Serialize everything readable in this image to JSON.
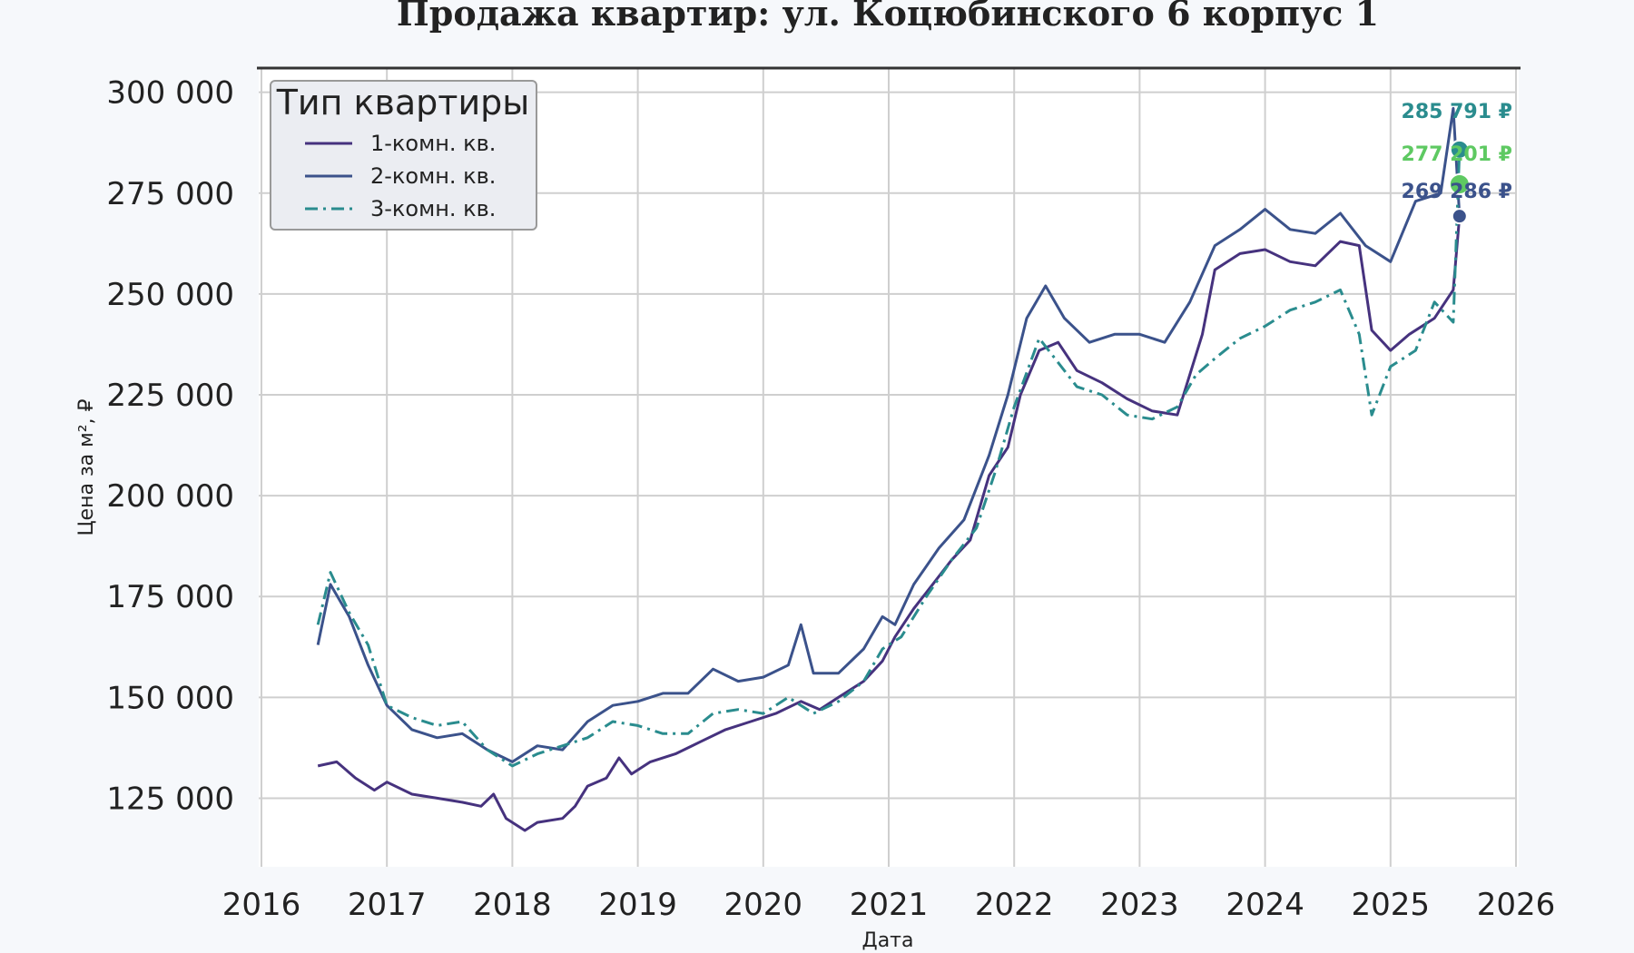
{
  "chart_data": {
    "type": "line",
    "title": "Продажа квартир: ул. Коцюбинского 6 корпус 1",
    "xlabel": "Дата",
    "ylabel": "Цена за м², ₽",
    "xlim": [
      2016,
      2026
    ],
    "ylim": [
      108000,
      306000
    ],
    "x_ticks": [
      "2016",
      "2017",
      "2018",
      "2019",
      "2020",
      "2021",
      "2022",
      "2023",
      "2024",
      "2025",
      "2026"
    ],
    "y_ticks": [
      {
        "value": 125000,
        "label": "125 000"
      },
      {
        "value": 150000,
        "label": "150 000"
      },
      {
        "value": 175000,
        "label": "175 000"
      },
      {
        "value": 200000,
        "label": "200 000"
      },
      {
        "value": 225000,
        "label": "225 000"
      },
      {
        "value": 250000,
        "label": "250 000"
      },
      {
        "value": 275000,
        "label": "275 000"
      },
      {
        "value": 300000,
        "label": "300 000"
      }
    ],
    "grid": true,
    "legend": {
      "title": "Тип квартиры",
      "position": "top-left"
    },
    "series": [
      {
        "name": "1-комн. кв.",
        "color": "#46327e",
        "dash": "solid",
        "points": [
          [
            2016.45,
            133000
          ],
          [
            2016.6,
            134000
          ],
          [
            2016.75,
            130000
          ],
          [
            2016.9,
            127000
          ],
          [
            2017.0,
            129000
          ],
          [
            2017.2,
            126000
          ],
          [
            2017.4,
            125000
          ],
          [
            2017.6,
            124000
          ],
          [
            2017.75,
            123000
          ],
          [
            2017.85,
            126000
          ],
          [
            2017.95,
            120000
          ],
          [
            2018.1,
            117000
          ],
          [
            2018.2,
            119000
          ],
          [
            2018.4,
            120000
          ],
          [
            2018.5,
            123000
          ],
          [
            2018.6,
            128000
          ],
          [
            2018.75,
            130000
          ],
          [
            2018.85,
            135000
          ],
          [
            2018.95,
            131000
          ],
          [
            2019.1,
            134000
          ],
          [
            2019.3,
            136000
          ],
          [
            2019.5,
            139000
          ],
          [
            2019.7,
            142000
          ],
          [
            2019.9,
            144000
          ],
          [
            2020.1,
            146000
          ],
          [
            2020.3,
            149000
          ],
          [
            2020.45,
            147000
          ],
          [
            2020.6,
            150000
          ],
          [
            2020.8,
            154000
          ],
          [
            2020.95,
            159000
          ],
          [
            2021.05,
            165000
          ],
          [
            2021.2,
            172000
          ],
          [
            2021.35,
            178000
          ],
          [
            2021.5,
            184000
          ],
          [
            2021.65,
            189000
          ],
          [
            2021.8,
            205000
          ],
          [
            2021.95,
            212000
          ],
          [
            2022.05,
            225000
          ],
          [
            2022.2,
            236000
          ],
          [
            2022.35,
            238000
          ],
          [
            2022.5,
            231000
          ],
          [
            2022.7,
            228000
          ],
          [
            2022.9,
            224000
          ],
          [
            2023.1,
            221000
          ],
          [
            2023.3,
            220000
          ],
          [
            2023.5,
            240000
          ],
          [
            2023.6,
            256000
          ],
          [
            2023.8,
            260000
          ],
          [
            2024.0,
            261000
          ],
          [
            2024.2,
            258000
          ],
          [
            2024.4,
            257000
          ],
          [
            2024.6,
            263000
          ],
          [
            2024.75,
            262000
          ],
          [
            2024.85,
            241000
          ],
          [
            2025.0,
            236000
          ],
          [
            2025.15,
            240000
          ],
          [
            2025.35,
            244000
          ],
          [
            2025.5,
            251000
          ],
          [
            2025.55,
            269286
          ]
        ]
      },
      {
        "name": "2-комн. кв.",
        "color": "#3b528b",
        "dash": "solid",
        "points": [
          [
            2016.45,
            163000
          ],
          [
            2016.55,
            178000
          ],
          [
            2016.7,
            170000
          ],
          [
            2016.85,
            158000
          ],
          [
            2017.0,
            148000
          ],
          [
            2017.2,
            142000
          ],
          [
            2017.4,
            140000
          ],
          [
            2017.6,
            141000
          ],
          [
            2017.8,
            137000
          ],
          [
            2018.0,
            134000
          ],
          [
            2018.2,
            138000
          ],
          [
            2018.4,
            137000
          ],
          [
            2018.6,
            144000
          ],
          [
            2018.8,
            148000
          ],
          [
            2019.0,
            149000
          ],
          [
            2019.2,
            151000
          ],
          [
            2019.4,
            151000
          ],
          [
            2019.6,
            157000
          ],
          [
            2019.8,
            154000
          ],
          [
            2020.0,
            155000
          ],
          [
            2020.2,
            158000
          ],
          [
            2020.3,
            168000
          ],
          [
            2020.4,
            156000
          ],
          [
            2020.6,
            156000
          ],
          [
            2020.8,
            162000
          ],
          [
            2020.95,
            170000
          ],
          [
            2021.05,
            168000
          ],
          [
            2021.2,
            178000
          ],
          [
            2021.4,
            187000
          ],
          [
            2021.6,
            194000
          ],
          [
            2021.8,
            210000
          ],
          [
            2021.95,
            225000
          ],
          [
            2022.1,
            244000
          ],
          [
            2022.25,
            252000
          ],
          [
            2022.4,
            244000
          ],
          [
            2022.6,
            238000
          ],
          [
            2022.8,
            240000
          ],
          [
            2023.0,
            240000
          ],
          [
            2023.2,
            238000
          ],
          [
            2023.4,
            248000
          ],
          [
            2023.6,
            262000
          ],
          [
            2023.8,
            266000
          ],
          [
            2024.0,
            271000
          ],
          [
            2024.2,
            266000
          ],
          [
            2024.4,
            265000
          ],
          [
            2024.6,
            270000
          ],
          [
            2024.8,
            262000
          ],
          [
            2025.0,
            258000
          ],
          [
            2025.2,
            273000
          ],
          [
            2025.4,
            275000
          ],
          [
            2025.5,
            296000
          ],
          [
            2025.55,
            269286
          ]
        ]
      },
      {
        "name": "3-комн. кв.",
        "color": "#2a8c8e",
        "dash": "dashdot",
        "points": [
          [
            2016.45,
            168000
          ],
          [
            2016.55,
            181000
          ],
          [
            2016.7,
            171000
          ],
          [
            2016.85,
            163000
          ],
          [
            2017.0,
            148000
          ],
          [
            2017.2,
            145000
          ],
          [
            2017.4,
            143000
          ],
          [
            2017.6,
            144000
          ],
          [
            2017.8,
            137000
          ],
          [
            2018.0,
            133000
          ],
          [
            2018.2,
            136000
          ],
          [
            2018.4,
            138000
          ],
          [
            2018.6,
            140000
          ],
          [
            2018.8,
            144000
          ],
          [
            2019.0,
            143000
          ],
          [
            2019.2,
            141000
          ],
          [
            2019.4,
            141000
          ],
          [
            2019.6,
            146000
          ],
          [
            2019.8,
            147000
          ],
          [
            2020.0,
            146000
          ],
          [
            2020.2,
            150000
          ],
          [
            2020.4,
            146000
          ],
          [
            2020.6,
            149000
          ],
          [
            2020.8,
            154000
          ],
          [
            2020.95,
            162000
          ],
          [
            2021.1,
            165000
          ],
          [
            2021.3,
            175000
          ],
          [
            2021.5,
            184000
          ],
          [
            2021.7,
            192000
          ],
          [
            2021.85,
            206000
          ],
          [
            2022.0,
            222000
          ],
          [
            2022.2,
            239000
          ],
          [
            2022.35,
            233000
          ],
          [
            2022.5,
            227000
          ],
          [
            2022.7,
            225000
          ],
          [
            2022.9,
            220000
          ],
          [
            2023.1,
            219000
          ],
          [
            2023.3,
            222000
          ],
          [
            2023.45,
            230000
          ],
          [
            2023.6,
            234000
          ],
          [
            2023.8,
            239000
          ],
          [
            2024.0,
            242000
          ],
          [
            2024.2,
            246000
          ],
          [
            2024.4,
            248000
          ],
          [
            2024.6,
            251000
          ],
          [
            2024.75,
            240000
          ],
          [
            2024.85,
            220000
          ],
          [
            2025.0,
            232000
          ],
          [
            2025.2,
            236000
          ],
          [
            2025.35,
            248000
          ],
          [
            2025.5,
            243000
          ],
          [
            2025.55,
            285791
          ]
        ]
      }
    ],
    "end_markers": [
      {
        "label": "285 791 ₽",
        "value": 285791,
        "color": "#2a8c8e"
      },
      {
        "label": "277 201 ₽",
        "value": 277201,
        "color": "#5ec962"
      },
      {
        "label": "269 286 ₽",
        "value": 269286,
        "color": "#3b528b"
      }
    ]
  }
}
